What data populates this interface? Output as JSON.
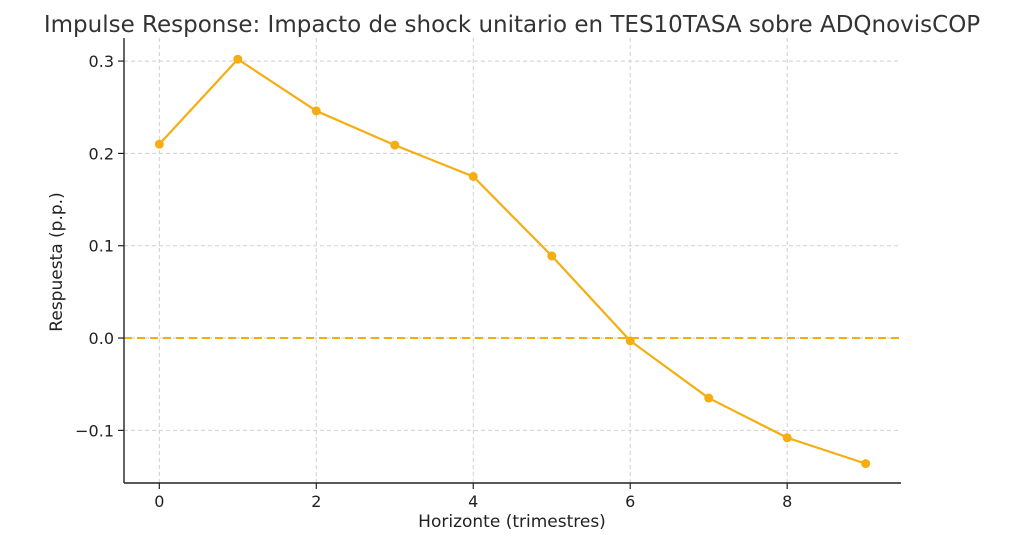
{
  "chart_data": {
    "type": "line",
    "title": "Impulse Response: Impacto de shock unitario en TES10TASA sobre ADQnovisCOP",
    "xlabel": "Horizonte (trimestres)",
    "ylabel": "Respuesta (p.p.)",
    "x": [
      0,
      1,
      2,
      3,
      4,
      5,
      6,
      7,
      8,
      9
    ],
    "series": [
      {
        "values": [
          0.21,
          0.302,
          0.246,
          0.209,
          0.175,
          0.089,
          -0.003,
          -0.065,
          -0.108,
          -0.136
        ],
        "color": "#f5ad12",
        "marker": "circle"
      }
    ],
    "reference_line": {
      "y": 0,
      "style": "dashed",
      "color": "#f5ad12"
    },
    "xticks": [
      0,
      2,
      4,
      6,
      8
    ],
    "xtick_labels": [
      "0",
      "2",
      "4",
      "6",
      "8"
    ],
    "yticks": [
      -0.1,
      0.0,
      0.1,
      0.2,
      0.3
    ],
    "ytick_labels": [
      "−0.1",
      "0.0",
      "0.1",
      "0.2",
      "0.3"
    ],
    "xlim": [
      -0.45,
      9.45
    ],
    "ylim": [
      -0.157,
      0.325
    ],
    "grid": true,
    "legend": "none"
  }
}
